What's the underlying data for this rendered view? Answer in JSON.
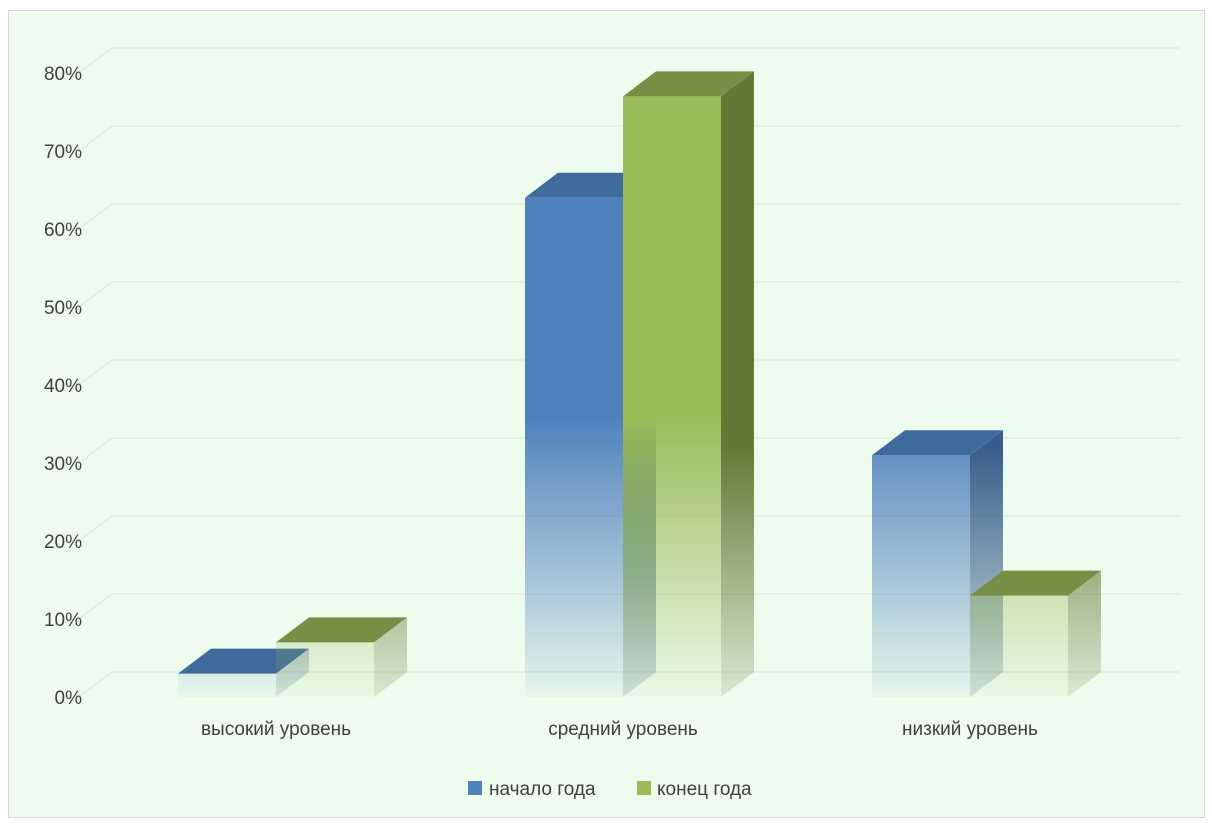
{
  "chart_data": {
    "type": "bar",
    "categories": [
      "высокий уровень",
      "средний уровень",
      "низкий уровень"
    ],
    "series": [
      {
        "name": "начало года",
        "values": [
          3,
          64,
          31
        ],
        "color": "#4f81bd",
        "side_color": "#385d8a",
        "top_color": "#3e6a9c"
      },
      {
        "name": "конец года",
        "values": [
          7,
          77,
          13
        ],
        "color": "#9bbb59",
        "side_color": "#637a36",
        "top_color": "#768f45"
      }
    ],
    "y_ticks": [
      "0%",
      "10%",
      "20%",
      "30%",
      "40%",
      "50%",
      "60%",
      "70%",
      "80%"
    ],
    "ylim": [
      0,
      80
    ],
    "grid": true,
    "three_d": true,
    "legend_position": "bottom",
    "title": "",
    "xlabel": "",
    "ylabel": ""
  }
}
